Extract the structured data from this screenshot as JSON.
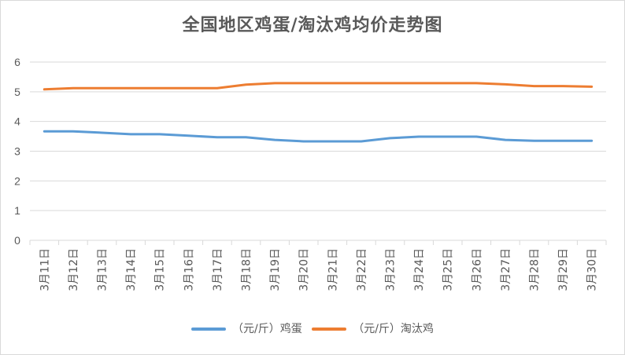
{
  "chart_data": {
    "type": "line",
    "title": "全国地区鸡蛋/淘汰鸡均价走势图",
    "xlabel": "",
    "ylabel": "",
    "ylim": [
      0,
      6
    ],
    "yticks": [
      0,
      1,
      2,
      3,
      4,
      5,
      6
    ],
    "grid": true,
    "legend_position": "bottom",
    "categories": [
      "3月11日",
      "3月12日",
      "3月13日",
      "3月14日",
      "3月15日",
      "3月16日",
      "3月17日",
      "3月18日",
      "3月19日",
      "3月20日",
      "3月21日",
      "3月22日",
      "3月23日",
      "3月24日",
      "3月25日",
      "3月26日",
      "3月27日",
      "3月28日",
      "3月29日",
      "3月30日"
    ],
    "series": [
      {
        "name": "（元/斤）鸡蛋",
        "color": "#5b9bd5",
        "values": [
          3.67,
          3.67,
          3.62,
          3.57,
          3.57,
          3.52,
          3.47,
          3.47,
          3.38,
          3.33,
          3.33,
          3.33,
          3.44,
          3.49,
          3.49,
          3.49,
          3.38,
          3.35,
          3.35,
          3.35
        ]
      },
      {
        "name": "（元/斤）淘汰鸡",
        "color": "#ed7d31",
        "values": [
          5.08,
          5.12,
          5.12,
          5.12,
          5.12,
          5.12,
          5.12,
          5.24,
          5.29,
          5.29,
          5.29,
          5.29,
          5.29,
          5.29,
          5.29,
          5.29,
          5.25,
          5.19,
          5.19,
          5.17
        ]
      }
    ]
  }
}
